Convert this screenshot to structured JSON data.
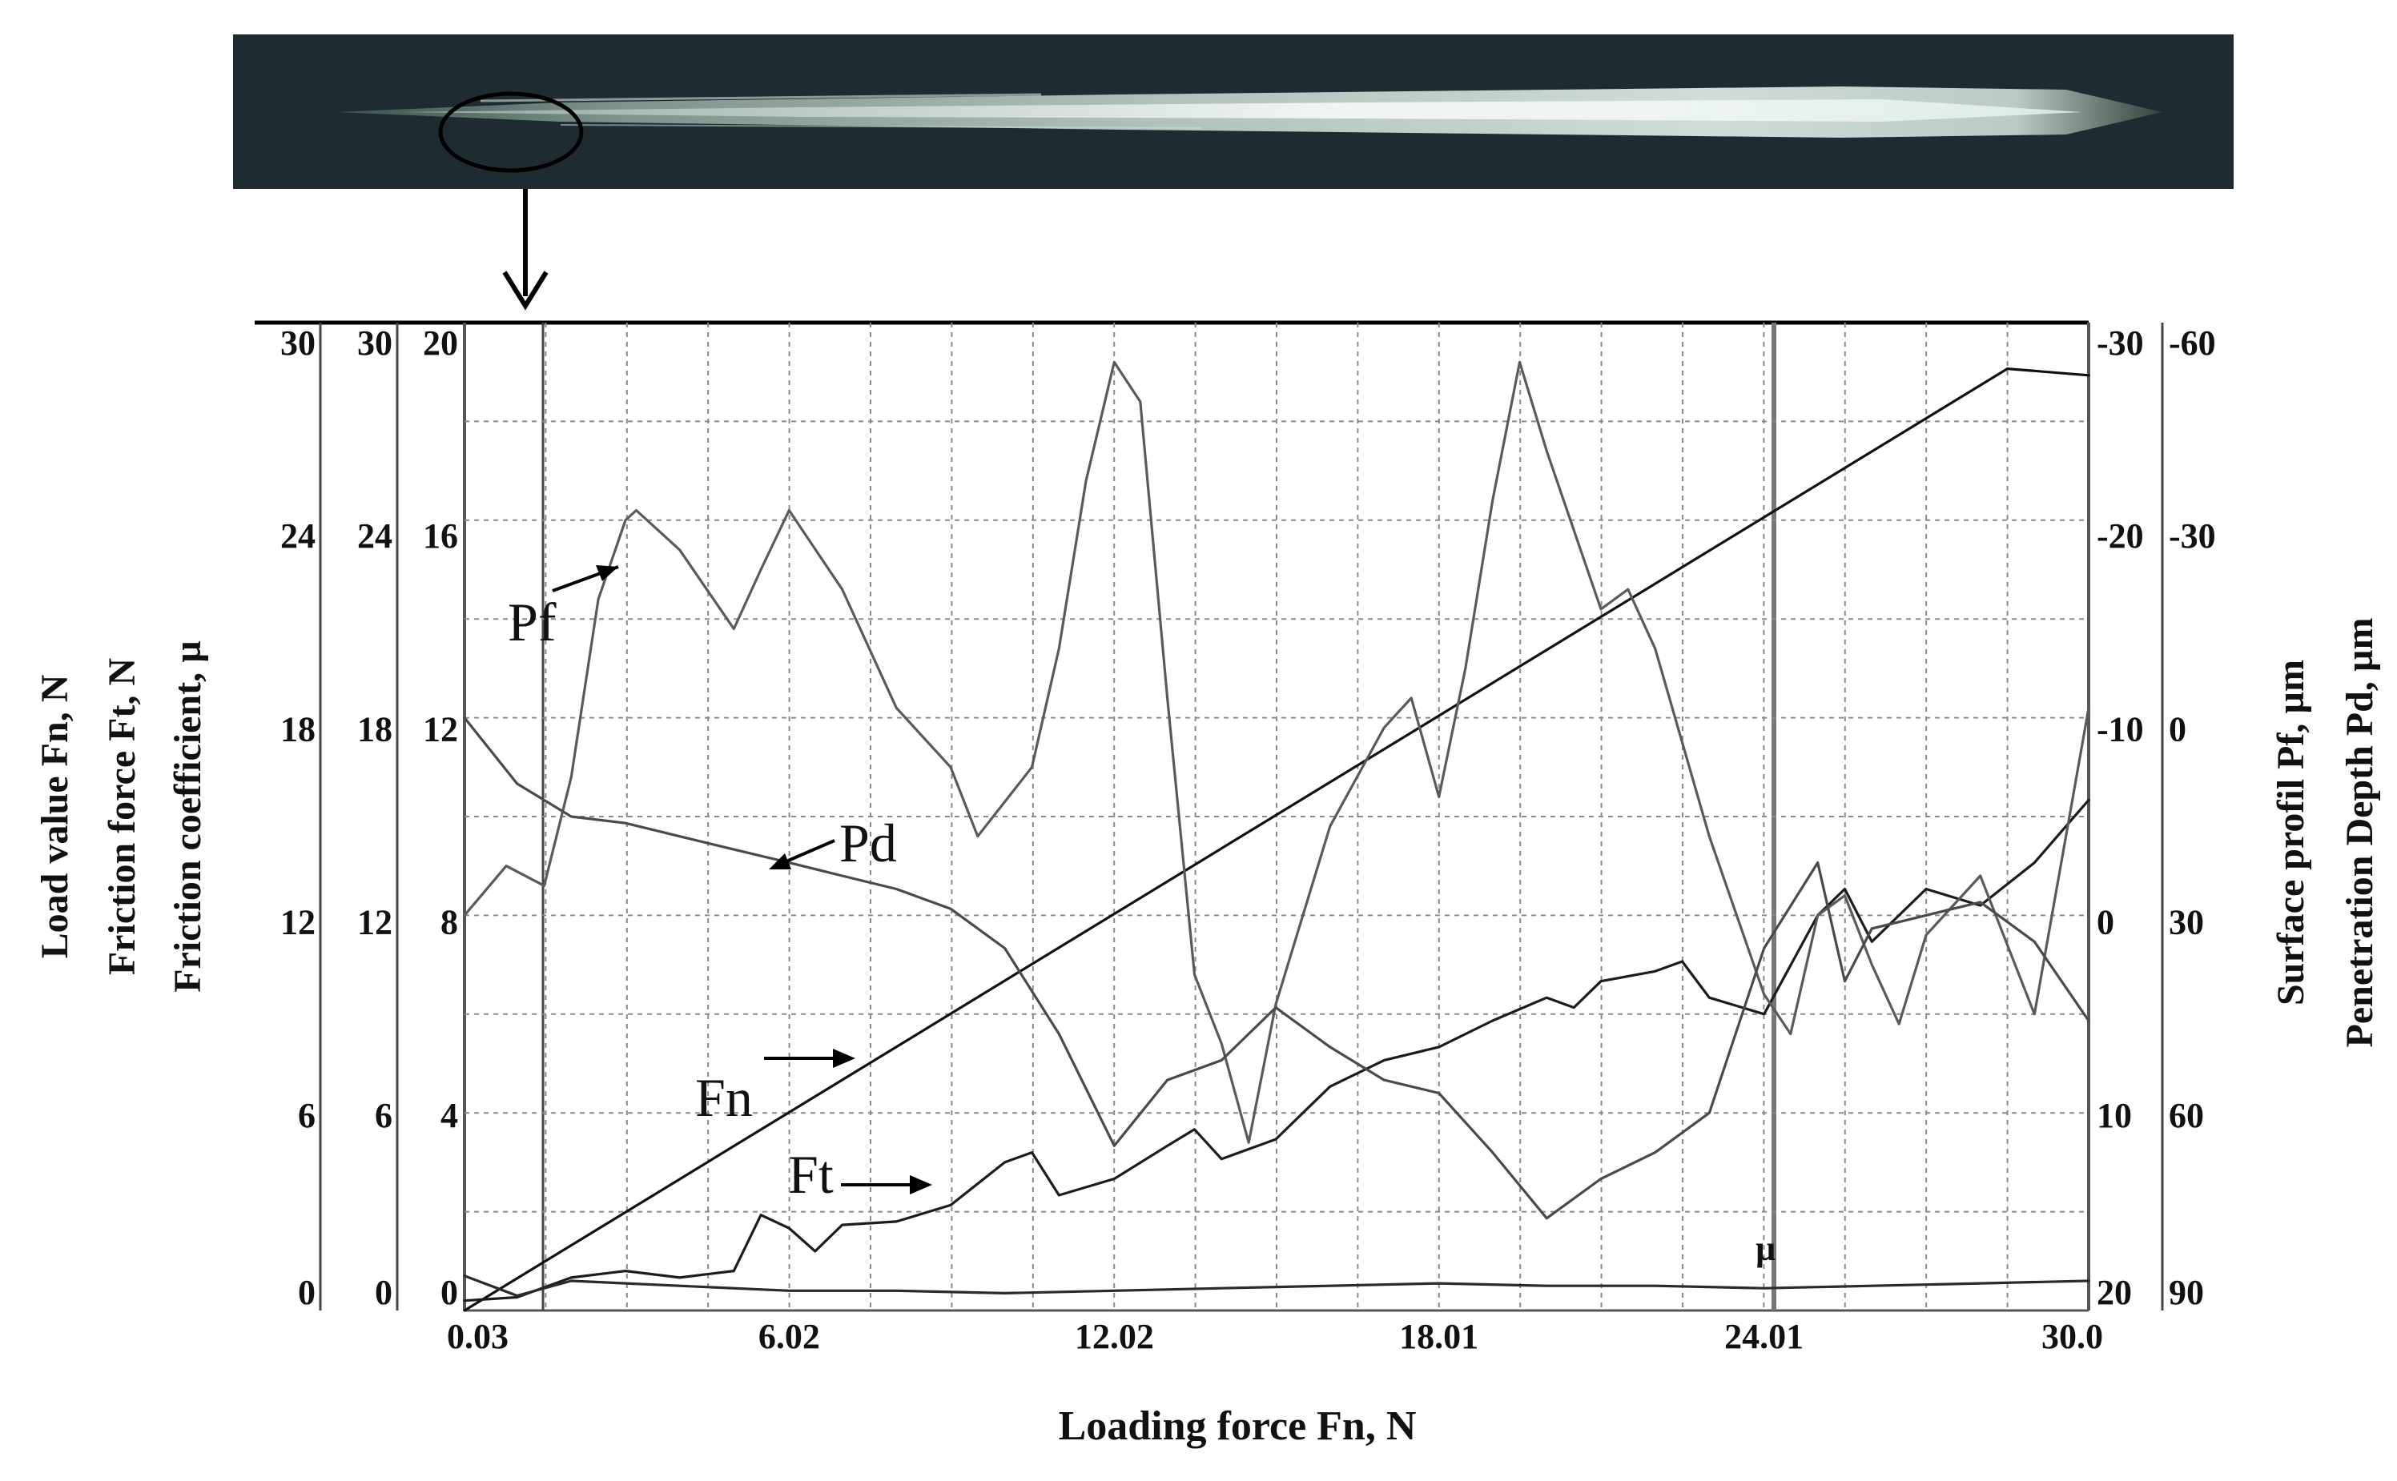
{
  "photo": {
    "description_icon": "scratch-track-micrograph"
  },
  "chart_data": {
    "type": "line",
    "title": "",
    "xlabel": "Loading force Fn, N",
    "xlim": [
      0.03,
      30.0
    ],
    "x_ticks": [
      "0.03",
      "6.02",
      "12.02",
      "18.01",
      "24.01",
      "30.0"
    ],
    "left_axes": [
      {
        "label": "Load value Fn, N",
        "ticks": [
          "30",
          "24",
          "18",
          "12",
          "6",
          "0"
        ],
        "ylim": [
          0,
          30
        ]
      },
      {
        "label": "Friction force Ft, N",
        "ticks": [
          "30",
          "24",
          "18",
          "12",
          "6",
          "0"
        ],
        "ylim": [
          0,
          30
        ]
      },
      {
        "label": "Friction coefficient,  µ",
        "ticks": [
          "20",
          "16",
          "12",
          "8",
          "4",
          "0"
        ],
        "ylim": [
          0,
          20
        ]
      }
    ],
    "right_axes": [
      {
        "label": "Surface profil Pf, µm",
        "ticks": [
          "-30",
          "-20",
          "-10",
          "0",
          "10",
          "20"
        ],
        "ylim": [
          20,
          -30
        ]
      },
      {
        "label": "Penetration Depth Pd, µm",
        "ticks": [
          "-60",
          "-30",
          "0",
          "30",
          "60",
          "90"
        ],
        "ylim": [
          90,
          -60
        ]
      }
    ],
    "annotations": [
      "Pf",
      "Pd",
      "Fn",
      "Ft",
      "µ"
    ],
    "series": [
      {
        "name": "Fn",
        "axis": "Load value Fn, N",
        "x": [
          0.03,
          28.5,
          30.0
        ],
        "y": [
          0.0,
          28.6,
          28.4
        ]
      },
      {
        "name": "Ft",
        "axis": "Friction force Ft, N",
        "x": [
          0.03,
          1.0,
          2.0,
          3.0,
          4.0,
          5.0,
          5.5,
          6.02,
          6.5,
          7.0,
          8.0,
          9.0,
          10.0,
          10.5,
          11.0,
          12.02,
          13.0,
          13.5,
          14.0,
          15.0,
          16.0,
          17.0,
          18.01,
          19.0,
          20.0,
          20.5,
          21.0,
          22.0,
          22.5,
          23.0,
          24.01,
          25.0,
          25.5,
          26.0,
          27.0,
          28.0,
          29.0,
          30.0
        ],
        "y": [
          0.3,
          0.4,
          1.0,
          1.2,
          1.0,
          1.2,
          2.9,
          2.5,
          1.8,
          2.6,
          2.7,
          3.2,
          4.5,
          4.8,
          3.5,
          4.0,
          5.0,
          5.5,
          4.6,
          5.2,
          6.8,
          7.6,
          8.0,
          8.8,
          9.5,
          9.2,
          10.0,
          10.3,
          10.6,
          9.5,
          9.0,
          12.0,
          12.8,
          11.2,
          12.8,
          12.3,
          13.6,
          15.5
        ]
      },
      {
        "name": "µ",
        "axis": "Friction coefficient,  µ",
        "x": [
          0.03,
          1.0,
          2.0,
          4.0,
          6.02,
          8.0,
          10.0,
          12.02,
          14.0,
          16.0,
          18.01,
          20.0,
          22.0,
          24.01,
          26.0,
          28.0,
          30.0
        ],
        "y": [
          0.7,
          0.3,
          0.6,
          0.5,
          0.4,
          0.4,
          0.35,
          0.4,
          0.45,
          0.5,
          0.55,
          0.5,
          0.5,
          0.45,
          0.5,
          0.55,
          0.6
        ]
      },
      {
        "name": "Pf",
        "axis": "Surface profil Pf, µm",
        "x": [
          0.03,
          0.8,
          1.5,
          2.0,
          2.5,
          3.0,
          3.2,
          4.0,
          5.0,
          5.5,
          6.02,
          7.0,
          8.0,
          9.0,
          9.5,
          10.5,
          11.0,
          11.5,
          12.02,
          12.5,
          13.0,
          13.5,
          14.0,
          14.5,
          15.0,
          16.0,
          17.0,
          17.5,
          18.01,
          18.5,
          19.0,
          19.5,
          20.0,
          21.0,
          21.5,
          22.0,
          23.0,
          24.01,
          24.5,
          25.0,
          25.5,
          26.0,
          26.5,
          27.0,
          28.0,
          29.0,
          30.0
        ],
        "y": [
          0.0,
          -2.5,
          -1.5,
          -7.0,
          -16.0,
          -20.0,
          -20.5,
          -18.5,
          -14.5,
          -17.5,
          -20.5,
          -16.5,
          -10.5,
          -7.5,
          -4.0,
          -7.5,
          -13.5,
          -22.0,
          -28.0,
          -26.0,
          -11.0,
          3.0,
          6.5,
          11.5,
          4.5,
          -4.5,
          -9.5,
          -11.0,
          -6.0,
          -12.5,
          -21.0,
          -28.0,
          -23.5,
          -15.5,
          -16.5,
          -13.5,
          -4.0,
          4.0,
          6.0,
          0.0,
          -1.0,
          2.5,
          5.5,
          1.0,
          -2.0,
          5.0,
          -10.5
        ]
      },
      {
        "name": "Pd",
        "axis": "Penetration Depth Pd, µm",
        "x": [
          0.03,
          1.0,
          2.0,
          3.0,
          4.0,
          5.0,
          6.02,
          7.0,
          8.0,
          9.0,
          10.0,
          11.0,
          12.02,
          13.0,
          14.0,
          15.0,
          16.0,
          17.0,
          18.01,
          19.0,
          20.0,
          21.0,
          22.0,
          23.0,
          24.01,
          25.0,
          25.5,
          26.0,
          27.0,
          28.0,
          29.0,
          30.0
        ],
        "y": [
          0.0,
          10.0,
          15.0,
          16.0,
          18.0,
          20.0,
          22.0,
          24.0,
          26.0,
          29.0,
          35.0,
          48.0,
          65.0,
          55.0,
          52.0,
          44.0,
          50.0,
          55.0,
          57.0,
          66.0,
          76.0,
          70.0,
          66.0,
          60.0,
          35.0,
          22.0,
          40.0,
          32.0,
          30.0,
          28.0,
          34.0,
          46.0
        ]
      }
    ]
  }
}
